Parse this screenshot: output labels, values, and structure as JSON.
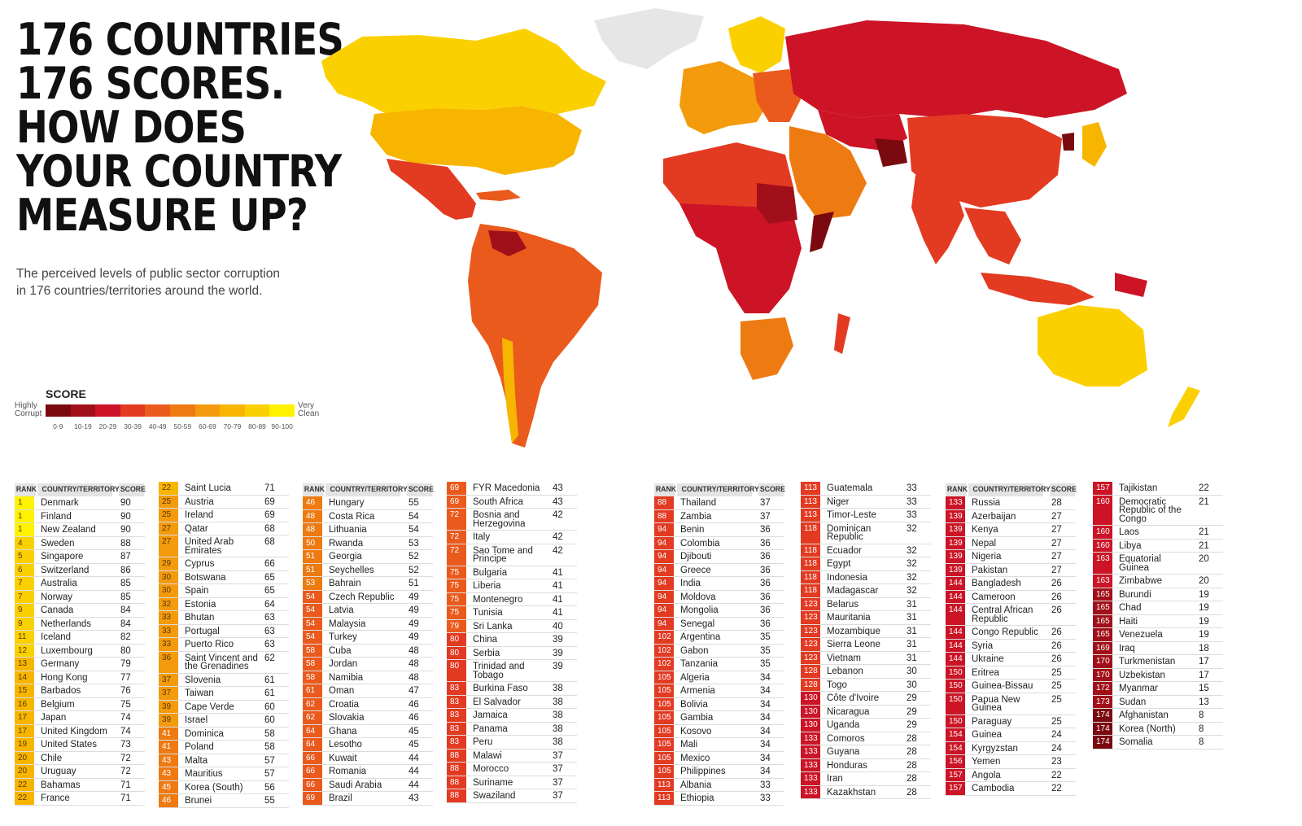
{
  "headline": [
    "176 COUNTRIES.",
    "176 SCORES.",
    "HOW DOES",
    "YOUR COUNTRY",
    "MEASURE UP?"
  ],
  "subtitle": "The perceived levels of public sector corruption in 176 countries/territories around the world.",
  "legend": {
    "title": "SCORE",
    "low_label": "Highly Corrupt",
    "high_label": "Very Clean",
    "bands": [
      {
        "label": "0-9",
        "color": "#7a0a0f"
      },
      {
        "label": "10-19",
        "color": "#a1101a"
      },
      {
        "label": "20-29",
        "color": "#cc1426"
      },
      {
        "label": "30-39",
        "color": "#e33a22"
      },
      {
        "label": "40-49",
        "color": "#ea5a1d"
      },
      {
        "label": "50-59",
        "color": "#ee7a12"
      },
      {
        "label": "60-69",
        "color": "#f39a0d"
      },
      {
        "label": "70-79",
        "color": "#f7b500"
      },
      {
        "label": "80-89",
        "color": "#fbd000"
      },
      {
        "label": "90-100",
        "color": "#fef200"
      }
    ]
  },
  "table_headers": {
    "rank": "RANK",
    "country": "COUNTRY/TERRITORY",
    "score": "SCORE"
  },
  "columns": [
    {
      "header": true,
      "rows": [
        {
          "rank": "1",
          "country": "Denmark",
          "score": "90"
        },
        {
          "rank": "1",
          "country": "Finland",
          "score": "90"
        },
        {
          "rank": "1",
          "country": "New Zealand",
          "score": "90"
        },
        {
          "rank": "4",
          "country": "Sweden",
          "score": "88"
        },
        {
          "rank": "5",
          "country": "Singapore",
          "score": "87"
        },
        {
          "rank": "6",
          "country": "Switzerland",
          "score": "86"
        },
        {
          "rank": "7",
          "country": "Australia",
          "score": "85"
        },
        {
          "rank": "7",
          "country": "Norway",
          "score": "85"
        },
        {
          "rank": "9",
          "country": "Canada",
          "score": "84"
        },
        {
          "rank": "9",
          "country": "Netherlands",
          "score": "84"
        },
        {
          "rank": "11",
          "country": "Iceland",
          "score": "82"
        },
        {
          "rank": "12",
          "country": "Luxembourg",
          "score": "80"
        },
        {
          "rank": "13",
          "country": "Germany",
          "score": "79"
        },
        {
          "rank": "14",
          "country": "Hong Kong",
          "score": "77"
        },
        {
          "rank": "15",
          "country": "Barbados",
          "score": "76"
        },
        {
          "rank": "16",
          "country": "Belgium",
          "score": "75"
        },
        {
          "rank": "17",
          "country": "Japan",
          "score": "74"
        },
        {
          "rank": "17",
          "country": "United Kingdom",
          "score": "74"
        },
        {
          "rank": "19",
          "country": "United States",
          "score": "73"
        },
        {
          "rank": "20",
          "country": "Chile",
          "score": "72"
        },
        {
          "rank": "20",
          "country": "Uruguay",
          "score": "72"
        },
        {
          "rank": "22",
          "country": "Bahamas",
          "score": "71"
        },
        {
          "rank": "22",
          "country": "France",
          "score": "71"
        }
      ]
    },
    {
      "header": false,
      "rows": [
        {
          "rank": "22",
          "country": "Saint Lucia",
          "score": "71"
        },
        {
          "rank": "25",
          "country": "Austria",
          "score": "69"
        },
        {
          "rank": "25",
          "country": "Ireland",
          "score": "69"
        },
        {
          "rank": "27",
          "country": "Qatar",
          "score": "68"
        },
        {
          "rank": "27",
          "country": "United Arab Emirates",
          "score": "68"
        },
        {
          "rank": "29",
          "country": "Cyprus",
          "score": "66"
        },
        {
          "rank": "30",
          "country": "Botswana",
          "score": "65"
        },
        {
          "rank": "30",
          "country": "Spain",
          "score": "65"
        },
        {
          "rank": "32",
          "country": "Estonia",
          "score": "64"
        },
        {
          "rank": "33",
          "country": "Bhutan",
          "score": "63"
        },
        {
          "rank": "33",
          "country": "Portugal",
          "score": "63"
        },
        {
          "rank": "33",
          "country": "Puerto Rico",
          "score": "63"
        },
        {
          "rank": "36",
          "country": "Saint Vincent and the Grenadines",
          "score": "62"
        },
        {
          "rank": "37",
          "country": "Slovenia",
          "score": "61"
        },
        {
          "rank": "37",
          "country": "Taiwan",
          "score": "61"
        },
        {
          "rank": "39",
          "country": "Cape Verde",
          "score": "60"
        },
        {
          "rank": "39",
          "country": "Israel",
          "score": "60"
        },
        {
          "rank": "41",
          "country": "Dominica",
          "score": "58"
        },
        {
          "rank": "41",
          "country": "Poland",
          "score": "58"
        },
        {
          "rank": "43",
          "country": "Malta",
          "score": "57"
        },
        {
          "rank": "43",
          "country": "Mauritius",
          "score": "57"
        },
        {
          "rank": "45",
          "country": "Korea (South)",
          "score": "56"
        },
        {
          "rank": "46",
          "country": "Brunei",
          "score": "55"
        }
      ]
    },
    {
      "header": true,
      "rows": [
        {
          "rank": "46",
          "country": "Hungary",
          "score": "55"
        },
        {
          "rank": "48",
          "country": "Costa Rica",
          "score": "54"
        },
        {
          "rank": "48",
          "country": "Lithuania",
          "score": "54"
        },
        {
          "rank": "50",
          "country": "Rwanda",
          "score": "53"
        },
        {
          "rank": "51",
          "country": "Georgia",
          "score": "52"
        },
        {
          "rank": "51",
          "country": "Seychelles",
          "score": "52"
        },
        {
          "rank": "53",
          "country": "Bahrain",
          "score": "51"
        },
        {
          "rank": "54",
          "country": "Czech Republic",
          "score": "49"
        },
        {
          "rank": "54",
          "country": "Latvia",
          "score": "49"
        },
        {
          "rank": "54",
          "country": "Malaysia",
          "score": "49"
        },
        {
          "rank": "54",
          "country": "Turkey",
          "score": "49"
        },
        {
          "rank": "58",
          "country": "Cuba",
          "score": "48"
        },
        {
          "rank": "58",
          "country": "Jordan",
          "score": "48"
        },
        {
          "rank": "58",
          "country": "Namibia",
          "score": "48"
        },
        {
          "rank": "61",
          "country": "Oman",
          "score": "47"
        },
        {
          "rank": "62",
          "country": "Croatia",
          "score": "46"
        },
        {
          "rank": "62",
          "country": "Slovakia",
          "score": "46"
        },
        {
          "rank": "64",
          "country": "Ghana",
          "score": "45"
        },
        {
          "rank": "64",
          "country": "Lesotho",
          "score": "45"
        },
        {
          "rank": "66",
          "country": "Kuwait",
          "score": "44"
        },
        {
          "rank": "66",
          "country": "Romania",
          "score": "44"
        },
        {
          "rank": "66",
          "country": "Saudi Arabia",
          "score": "44"
        },
        {
          "rank": "69",
          "country": "Brazil",
          "score": "43"
        }
      ]
    },
    {
      "header": false,
      "rows": [
        {
          "rank": "69",
          "country": "FYR Macedonia",
          "score": "43"
        },
        {
          "rank": "69",
          "country": "South Africa",
          "score": "43"
        },
        {
          "rank": "72",
          "country": "Bosnia and Herzegovina",
          "score": "42"
        },
        {
          "rank": "72",
          "country": "Italy",
          "score": "42"
        },
        {
          "rank": "72",
          "country": "Sao Tome and Principe",
          "score": "42"
        },
        {
          "rank": "75",
          "country": "Bulgaria",
          "score": "41"
        },
        {
          "rank": "75",
          "country": "Liberia",
          "score": "41"
        },
        {
          "rank": "75",
          "country": "Montenegro",
          "score": "41"
        },
        {
          "rank": "75",
          "country": "Tunisia",
          "score": "41"
        },
        {
          "rank": "79",
          "country": "Sri Lanka",
          "score": "40"
        },
        {
          "rank": "80",
          "country": "China",
          "score": "39"
        },
        {
          "rank": "80",
          "country": "Serbia",
          "score": "39"
        },
        {
          "rank": "80",
          "country": "Trinidad and Tobago",
          "score": "39"
        },
        {
          "rank": "83",
          "country": "Burkina Faso",
          "score": "38"
        },
        {
          "rank": "83",
          "country": "El Salvador",
          "score": "38"
        },
        {
          "rank": "83",
          "country": "Jamaica",
          "score": "38"
        },
        {
          "rank": "83",
          "country": "Panama",
          "score": "38"
        },
        {
          "rank": "83",
          "country": "Peru",
          "score": "38"
        },
        {
          "rank": "88",
          "country": "Malawi",
          "score": "37"
        },
        {
          "rank": "88",
          "country": "Morocco",
          "score": "37"
        },
        {
          "rank": "88",
          "country": "Suriname",
          "score": "37"
        },
        {
          "rank": "88",
          "country": "Swaziland",
          "score": "37"
        }
      ]
    },
    {
      "header": true,
      "rows": [
        {
          "rank": "88",
          "country": "Thailand",
          "score": "37"
        },
        {
          "rank": "88",
          "country": "Zambia",
          "score": "37"
        },
        {
          "rank": "94",
          "country": "Benin",
          "score": "36"
        },
        {
          "rank": "94",
          "country": "Colombia",
          "score": "36"
        },
        {
          "rank": "94",
          "country": "Djibouti",
          "score": "36"
        },
        {
          "rank": "94",
          "country": "Greece",
          "score": "36"
        },
        {
          "rank": "94",
          "country": "India",
          "score": "36"
        },
        {
          "rank": "94",
          "country": "Moldova",
          "score": "36"
        },
        {
          "rank": "94",
          "country": "Mongolia",
          "score": "36"
        },
        {
          "rank": "94",
          "country": "Senegal",
          "score": "36"
        },
        {
          "rank": "102",
          "country": "Argentina",
          "score": "35"
        },
        {
          "rank": "102",
          "country": "Gabon",
          "score": "35"
        },
        {
          "rank": "102",
          "country": "Tanzania",
          "score": "35"
        },
        {
          "rank": "105",
          "country": "Algeria",
          "score": "34"
        },
        {
          "rank": "105",
          "country": "Armenia",
          "score": "34"
        },
        {
          "rank": "105",
          "country": "Bolivia",
          "score": "34"
        },
        {
          "rank": "105",
          "country": "Gambia",
          "score": "34"
        },
        {
          "rank": "105",
          "country": "Kosovo",
          "score": "34"
        },
        {
          "rank": "105",
          "country": "Mali",
          "score": "34"
        },
        {
          "rank": "105",
          "country": "Mexico",
          "score": "34"
        },
        {
          "rank": "105",
          "country": "Philippines",
          "score": "34"
        },
        {
          "rank": "113",
          "country": "Albania",
          "score": "33"
        },
        {
          "rank": "113",
          "country": "Ethiopia",
          "score": "33"
        }
      ]
    },
    {
      "header": false,
      "rows": [
        {
          "rank": "113",
          "country": "Guatemala",
          "score": "33"
        },
        {
          "rank": "113",
          "country": "Niger",
          "score": "33"
        },
        {
          "rank": "113",
          "country": "Timor-Leste",
          "score": "33"
        },
        {
          "rank": "118",
          "country": "Dominican Republic",
          "score": "32"
        },
        {
          "rank": "118",
          "country": "Ecuador",
          "score": "32"
        },
        {
          "rank": "118",
          "country": "Egypt",
          "score": "32"
        },
        {
          "rank": "118",
          "country": "Indonesia",
          "score": "32"
        },
        {
          "rank": "118",
          "country": "Madagascar",
          "score": "32"
        },
        {
          "rank": "123",
          "country": "Belarus",
          "score": "31"
        },
        {
          "rank": "123",
          "country": "Mauritania",
          "score": "31"
        },
        {
          "rank": "123",
          "country": "Mozambique",
          "score": "31"
        },
        {
          "rank": "123",
          "country": "Sierra Leone",
          "score": "31"
        },
        {
          "rank": "123",
          "country": "Vietnam",
          "score": "31"
        },
        {
          "rank": "128",
          "country": "Lebanon",
          "score": "30"
        },
        {
          "rank": "128",
          "country": "Togo",
          "score": "30"
        },
        {
          "rank": "130",
          "country": "Côte d'Ivoire",
          "score": "29"
        },
        {
          "rank": "130",
          "country": "Nicaragua",
          "score": "29"
        },
        {
          "rank": "130",
          "country": "Uganda",
          "score": "29"
        },
        {
          "rank": "133",
          "country": "Comoros",
          "score": "28"
        },
        {
          "rank": "133",
          "country": "Guyana",
          "score": "28"
        },
        {
          "rank": "133",
          "country": "Honduras",
          "score": "28"
        },
        {
          "rank": "133",
          "country": "Iran",
          "score": "28"
        },
        {
          "rank": "133",
          "country": "Kazakhstan",
          "score": "28"
        }
      ]
    },
    {
      "header": true,
      "rows": [
        {
          "rank": "133",
          "country": "Russia",
          "score": "28"
        },
        {
          "rank": "139",
          "country": "Azerbaijan",
          "score": "27"
        },
        {
          "rank": "139",
          "country": "Kenya",
          "score": "27"
        },
        {
          "rank": "139",
          "country": "Nepal",
          "score": "27"
        },
        {
          "rank": "139",
          "country": "Nigeria",
          "score": "27"
        },
        {
          "rank": "139",
          "country": "Pakistan",
          "score": "27"
        },
        {
          "rank": "144",
          "country": "Bangladesh",
          "score": "26"
        },
        {
          "rank": "144",
          "country": "Cameroon",
          "score": "26"
        },
        {
          "rank": "144",
          "country": "Central African Republic",
          "score": "26"
        },
        {
          "rank": "144",
          "country": "Congo Republic",
          "score": "26"
        },
        {
          "rank": "144",
          "country": "Syria",
          "score": "26"
        },
        {
          "rank": "144",
          "country": "Ukraine",
          "score": "26"
        },
        {
          "rank": "150",
          "country": "Eritrea",
          "score": "25"
        },
        {
          "rank": "150",
          "country": "Guinea-Bissau",
          "score": "25"
        },
        {
          "rank": "150",
          "country": "Papua New Guinea",
          "score": "25"
        },
        {
          "rank": "150",
          "country": "Paraguay",
          "score": "25"
        },
        {
          "rank": "154",
          "country": "Guinea",
          "score": "24"
        },
        {
          "rank": "154",
          "country": "Kyrgyzstan",
          "score": "24"
        },
        {
          "rank": "156",
          "country": "Yemen",
          "score": "23"
        },
        {
          "rank": "157",
          "country": "Angola",
          "score": "22"
        },
        {
          "rank": "157",
          "country": "Cambodia",
          "score": "22"
        }
      ]
    },
    {
      "header": false,
      "rows": [
        {
          "rank": "157",
          "country": "Tajikistan",
          "score": "22"
        },
        {
          "rank": "160",
          "country": "Democratic Republic of the Congo",
          "score": "21"
        },
        {
          "rank": "160",
          "country": "Laos",
          "score": "21"
        },
        {
          "rank": "160",
          "country": "Libya",
          "score": "21"
        },
        {
          "rank": "163",
          "country": "Equatorial Guinea",
          "score": "20"
        },
        {
          "rank": "163",
          "country": "Zimbabwe",
          "score": "20"
        },
        {
          "rank": "165",
          "country": "Burundi",
          "score": "19"
        },
        {
          "rank": "165",
          "country": "Chad",
          "score": "19"
        },
        {
          "rank": "165",
          "country": "Haiti",
          "score": "19"
        },
        {
          "rank": "165",
          "country": "Venezuela",
          "score": "19"
        },
        {
          "rank": "169",
          "country": "Iraq",
          "score": "18"
        },
        {
          "rank": "170",
          "country": "Turkmenistan",
          "score": "17"
        },
        {
          "rank": "170",
          "country": "Uzbekistan",
          "score": "17"
        },
        {
          "rank": "172",
          "country": "Myanmar",
          "score": "15"
        },
        {
          "rank": "173",
          "country": "Sudan",
          "score": "13"
        },
        {
          "rank": "174",
          "country": "Afghanistan",
          "score": "8"
        },
        {
          "rank": "174",
          "country": "Korea (North)",
          "score": "8"
        },
        {
          "rank": "174",
          "country": "Somalia",
          "score": "8"
        }
      ]
    }
  ]
}
